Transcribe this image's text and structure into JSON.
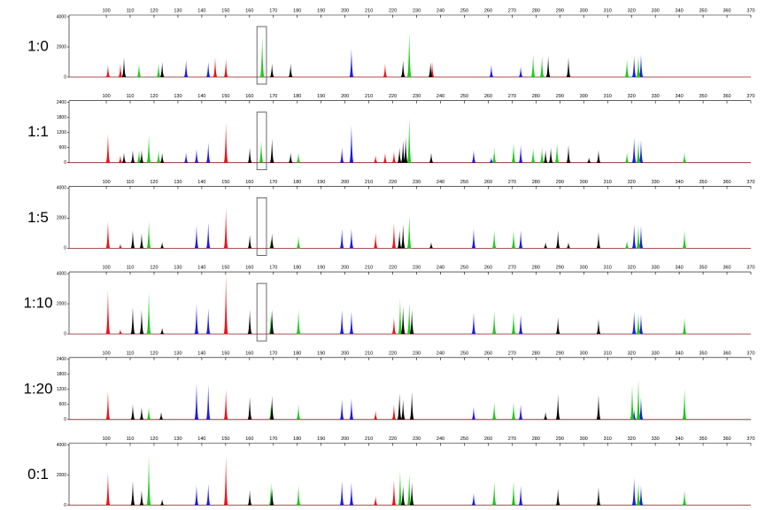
{
  "chart_data": [
    {
      "type": "peaks",
      "title": "1:0",
      "xlim": [
        84.4,
        370
      ],
      "xticks": [
        100,
        110,
        120,
        130,
        140,
        150,
        160,
        170,
        180,
        190,
        200,
        210,
        220,
        230,
        240,
        250,
        260,
        270,
        280,
        290,
        300,
        310,
        320,
        330,
        340,
        350,
        360,
        370
      ],
      "ylim": [
        0,
        4000
      ],
      "yticks": [
        0,
        2000,
        4000
      ],
      "highlight_x": [
        163.1,
        167.1
      ],
      "series": [
        {
          "color": "#e8141c",
          "x": [
            100.7,
            105.9,
            145.6,
            150.1,
            216.8,
            236.5
          ],
          "values": [
            800,
            900,
            1300,
            1200,
            900,
            1000
          ]
        },
        {
          "color": "#1a1ae6",
          "x": [
            133.4,
            142.7,
            202.7,
            261.3,
            273.6,
            321.1,
            324.0
          ],
          "values": [
            1100,
            1000,
            1900,
            800,
            700,
            1400,
            1500
          ]
        },
        {
          "color": "#1ec81e",
          "x": [
            113.7,
            121.9,
            165.3,
            226.9,
            278.8,
            282.5,
            318.1,
            322.9
          ],
          "values": [
            900,
            900,
            2700,
            3000,
            1500,
            1400,
            1200,
            1400
          ]
        },
        {
          "color": "#000000",
          "x": [
            107.4,
            123.4,
            169.4,
            177.2,
            224.3,
            235.8,
            285.1,
            293.6
          ],
          "values": [
            1300,
            1000,
            900,
            900,
            1100,
            1000,
            1400,
            1300
          ]
        }
      ]
    },
    {
      "type": "peaks",
      "title": "1:1",
      "xlim": [
        84.4,
        370
      ],
      "xticks": [
        100,
        110,
        120,
        130,
        140,
        150,
        160,
        170,
        180,
        190,
        200,
        210,
        220,
        230,
        240,
        250,
        260,
        270,
        280,
        290,
        300,
        310,
        320,
        330,
        340,
        350,
        360,
        370
      ],
      "ylim": [
        0,
        2400
      ],
      "yticks": [
        0,
        600,
        1200,
        1800,
        2400
      ],
      "highlight_x": [
        163.1,
        167.1
      ],
      "series": [
        {
          "color": "#e8141c",
          "x": [
            100.7,
            105.9,
            150.1,
            212.8,
            216.8,
            220.5,
            236.1
          ],
          "values": [
            1150,
            300,
            1600,
            300,
            400,
            450,
            300
          ]
        },
        {
          "color": "#1a1ae6",
          "x": [
            133.4,
            137.8,
            142.7,
            198.7,
            202.7,
            253.9,
            261.3,
            273.6,
            321.1,
            324.0
          ],
          "values": [
            400,
            550,
            800,
            600,
            1500,
            500,
            200,
            700,
            1000,
            900
          ]
        },
        {
          "color": "#1ec81e",
          "x": [
            113.7,
            117.8,
            121.9,
            164.9,
            180.5,
            226.9,
            262.5,
            270.6,
            278.8,
            282.5,
            288.8,
            318.1,
            322.9,
            342.2
          ],
          "values": [
            500,
            1100,
            500,
            900,
            400,
            1800,
            600,
            800,
            600,
            600,
            800,
            400,
            900,
            400
          ]
        },
        {
          "color": "#000000",
          "x": [
            107.4,
            111.1,
            114.8,
            123.4,
            160.1,
            169.4,
            177.2,
            222.8,
            224.3,
            225.4,
            236.1,
            284.0,
            286.2,
            293.6,
            302.2,
            306.2
          ],
          "values": [
            400,
            500,
            500,
            400,
            600,
            950,
            400,
            600,
            900,
            1000,
            400,
            500,
            600,
            700,
            200,
            500
          ]
        }
      ]
    },
    {
      "type": "peaks",
      "title": "1:5",
      "xlim": [
        84.4,
        370
      ],
      "xticks": [
        100,
        110,
        120,
        130,
        140,
        150,
        160,
        170,
        180,
        190,
        200,
        210,
        220,
        230,
        240,
        250,
        260,
        270,
        280,
        290,
        300,
        310,
        320,
        330,
        340,
        350,
        360,
        370
      ],
      "ylim": [
        0,
        4000
      ],
      "yticks": [
        0,
        2000,
        4000
      ],
      "highlight_x": [
        163.1,
        167.1
      ],
      "series": [
        {
          "color": "#e8141c",
          "x": [
            100.7,
            105.9,
            150.1,
            212.8,
            220.5
          ],
          "values": [
            1800,
            300,
            2700,
            1000,
            1700
          ]
        },
        {
          "color": "#1a1ae6",
          "x": [
            137.8,
            142.7,
            198.7,
            202.7,
            253.9,
            273.6,
            321.1,
            324.0
          ],
          "values": [
            1500,
            1700,
            1300,
            1300,
            1300,
            1200,
            1600,
            1500
          ]
        },
        {
          "color": "#1ec81e",
          "x": [
            117.8,
            169.0,
            180.5,
            226.9,
            262.5,
            270.6,
            318.1,
            322.9,
            342.2
          ],
          "values": [
            1800,
            600,
            800,
            2200,
            1200,
            1200,
            500,
            1500,
            1200
          ]
        },
        {
          "color": "#000000",
          "x": [
            111.1,
            114.8,
            123.4,
            160.1,
            169.4,
            222.8,
            224.3,
            236.1,
            284.0,
            289.2,
            293.6,
            306.2
          ],
          "values": [
            1200,
            1000,
            400,
            900,
            1000,
            1200,
            1600,
            400,
            400,
            1200,
            400,
            1100
          ]
        }
      ]
    },
    {
      "type": "peaks",
      "title": "1:10",
      "xlim": [
        84.4,
        370
      ],
      "xticks": [
        100,
        110,
        120,
        130,
        140,
        150,
        160,
        170,
        180,
        190,
        200,
        210,
        220,
        230,
        240,
        250,
        260,
        270,
        280,
        290,
        300,
        310,
        320,
        330,
        340,
        350,
        360,
        370
      ],
      "ylim": [
        0,
        4000
      ],
      "yticks": [
        0,
        2000,
        4000
      ],
      "highlight_x": [
        163.1,
        167.1
      ],
      "series": [
        {
          "color": "#e8141c",
          "x": [
            100.7,
            105.9,
            150.1,
            220.5
          ],
          "values": [
            2900,
            300,
            3900,
            1100
          ]
        },
        {
          "color": "#1a1ae6",
          "x": [
            137.8,
            142.7,
            198.7,
            202.7,
            253.9,
            273.6,
            321.1,
            324.0
          ],
          "values": [
            2000,
            1700,
            1600,
            1500,
            1400,
            1300,
            1500,
            1300
          ]
        },
        {
          "color": "#1ec81e",
          "x": [
            117.8,
            169.0,
            180.5,
            223.1,
            226.9,
            262.5,
            270.6,
            322.9,
            342.2
          ],
          "values": [
            2800,
            1500,
            1600,
            2300,
            2100,
            1500,
            1500,
            1400,
            1100
          ]
        },
        {
          "color": "#000000",
          "x": [
            111.1,
            114.8,
            123.4,
            160.1,
            169.4,
            224.3,
            228.0,
            289.2,
            306.2
          ],
          "values": [
            1800,
            1600,
            400,
            1600,
            1600,
            1800,
            1600,
            1100,
            1000
          ]
        }
      ]
    },
    {
      "type": "peaks",
      "title": "1:20",
      "xlim": [
        84.4,
        370
      ],
      "xticks": [
        100,
        110,
        120,
        130,
        140,
        150,
        160,
        170,
        180,
        190,
        200,
        210,
        220,
        230,
        240,
        250,
        260,
        270,
        280,
        290,
        300,
        310,
        320,
        330,
        340,
        350,
        360,
        370
      ],
      "ylim": [
        0,
        2400
      ],
      "yticks": [
        0,
        600,
        1200,
        1800,
        2400
      ],
      "series": [
        {
          "color": "#e8141c",
          "x": [
            100.7,
            150.1,
            212.8,
            220.5
          ],
          "values": [
            1150,
            1200,
            350,
            600
          ]
        },
        {
          "color": "#1a1ae6",
          "x": [
            137.8,
            142.7,
            198.7,
            202.7,
            253.9,
            273.6,
            321.1,
            324.0
          ],
          "values": [
            1450,
            1400,
            800,
            850,
            500,
            600,
            400,
            900
          ]
        },
        {
          "color": "#1ec81e",
          "x": [
            117.8,
            169.0,
            180.5,
            262.5,
            270.6,
            320.3,
            322.9,
            342.2
          ],
          "values": [
            500,
            600,
            600,
            700,
            700,
            1400,
            1600,
            1250
          ]
        },
        {
          "color": "#000000",
          "x": [
            111.1,
            114.8,
            123.0,
            160.1,
            169.4,
            222.8,
            224.3,
            228.0,
            284.0,
            289.2,
            306.2
          ],
          "values": [
            600,
            500,
            300,
            900,
            950,
            1050,
            800,
            1100,
            300,
            1000,
            1000
          ]
        }
      ]
    },
    {
      "type": "peaks",
      "title": "0:1",
      "xlim": [
        84.4,
        370
      ],
      "xticks": [
        100,
        110,
        120,
        130,
        140,
        150,
        160,
        170,
        180,
        190,
        200,
        210,
        220,
        230,
        240,
        250,
        260,
        270,
        280,
        290,
        300,
        310,
        320,
        330,
        340,
        350,
        360,
        370
      ],
      "ylim": [
        0,
        4000
      ],
      "yticks": [
        0,
        2000,
        4000
      ],
      "series": [
        {
          "color": "#e8141c",
          "x": [
            100.7,
            150.1,
            212.8,
            220.5
          ],
          "values": [
            2200,
            3200,
            600,
            1700
          ]
        },
        {
          "color": "#1a1ae6",
          "x": [
            137.8,
            142.7,
            198.7,
            202.7,
            253.9,
            273.6,
            321.1,
            324.0
          ],
          "values": [
            1300,
            1400,
            1600,
            1500,
            800,
            1300,
            1800,
            1300
          ]
        },
        {
          "color": "#1ec81e",
          "x": [
            117.8,
            169.0,
            180.5,
            223.1,
            226.9,
            262.5,
            270.6,
            322.9,
            342.2
          ],
          "values": [
            3300,
            1500,
            1300,
            2300,
            2100,
            1600,
            1600,
            1500,
            1000
          ]
        },
        {
          "color": "#000000",
          "x": [
            111.1,
            114.8,
            123.4,
            160.1,
            169.4,
            224.3,
            228.0,
            289.2,
            306.2
          ],
          "values": [
            1600,
            1000,
            400,
            1000,
            1100,
            1300,
            1500,
            1100,
            1200
          ]
        }
      ]
    }
  ]
}
